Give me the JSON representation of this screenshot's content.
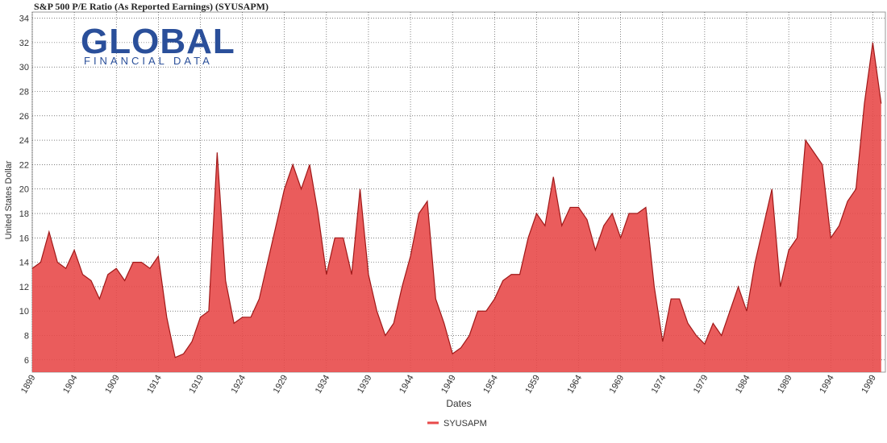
{
  "chart_data": {
    "type": "area",
    "title": "S&P 500 P/E Ratio (As Reported Earnings) (SYUSAPM)",
    "watermark": [
      "GLOBAL",
      "FINANCIAL DATA"
    ],
    "x_label": "Dates",
    "y_label": "United States Dollar",
    "x": [
      1899,
      1900,
      1901,
      1902,
      1903,
      1904,
      1905,
      1906,
      1907,
      1908,
      1909,
      1910,
      1911,
      1912,
      1913,
      1914,
      1915,
      1916,
      1917,
      1918,
      1919,
      1920,
      1921,
      1922,
      1923,
      1924,
      1925,
      1926,
      1927,
      1928,
      1929,
      1930,
      1931,
      1932,
      1933,
      1934,
      1935,
      1936,
      1937,
      1938,
      1939,
      1940,
      1941,
      1942,
      1943,
      1944,
      1945,
      1946,
      1947,
      1948,
      1949,
      1950,
      1951,
      1952,
      1953,
      1954,
      1955,
      1956,
      1957,
      1958,
      1959,
      1960,
      1961,
      1962,
      1963,
      1964,
      1965,
      1966,
      1967,
      1968,
      1969,
      1970,
      1971,
      1972,
      1973,
      1974,
      1975,
      1976,
      1977,
      1978,
      1979,
      1980,
      1981,
      1982,
      1983,
      1984,
      1985,
      1986,
      1987,
      1988,
      1989,
      1990,
      1991,
      1992,
      1993,
      1994,
      1995,
      1996,
      1997,
      1998,
      1999,
      2000
    ],
    "series": [
      {
        "name": "SYUSAPM",
        "color": "#e84a4a",
        "values": [
          13.5,
          14,
          16.5,
          14,
          13.5,
          15,
          13,
          12.5,
          11,
          13,
          13.5,
          12.5,
          14,
          14,
          13.5,
          14.5,
          9.5,
          6.2,
          6.5,
          7.5,
          9.5,
          10,
          23,
          12.5,
          9,
          9.5,
          9.5,
          11,
          14,
          17,
          20,
          22,
          20,
          22,
          18,
          13,
          16,
          16,
          13,
          20,
          13,
          10,
          8,
          9,
          12,
          14.5,
          18,
          19,
          11,
          9,
          6.5,
          7,
          8,
          10,
          10,
          11,
          12.5,
          13,
          13,
          16,
          18,
          17,
          21,
          17,
          18.5,
          18.5,
          17.5,
          15,
          17,
          18,
          16,
          18,
          18,
          18.5,
          12,
          7.5,
          11,
          11,
          9,
          8,
          7.3,
          9,
          8,
          10,
          12,
          10,
          14,
          17,
          20,
          12,
          15,
          16,
          24,
          23,
          22,
          16,
          17,
          19,
          20,
          27,
          32,
          27
        ]
      }
    ],
    "xlim": [
      1899,
      2000.5
    ],
    "ylim": [
      5,
      34.5
    ],
    "xticks": [
      1899,
      1904,
      1909,
      1914,
      1919,
      1924,
      1929,
      1934,
      1939,
      1944,
      1949,
      1954,
      1959,
      1964,
      1969,
      1974,
      1979,
      1984,
      1989,
      1994,
      1999
    ],
    "yticks": [
      6,
      8,
      10,
      12,
      14,
      16,
      18,
      20,
      22,
      24,
      26,
      28,
      30,
      32,
      34
    ],
    "grid": true
  }
}
